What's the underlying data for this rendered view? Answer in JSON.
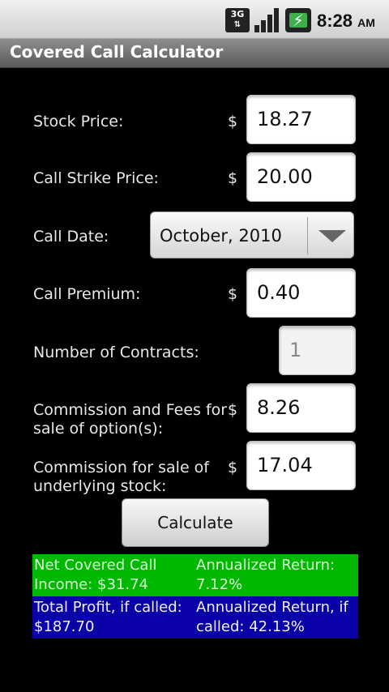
{
  "status_bar": {
    "network": "3G",
    "network_arrows": "⇅",
    "battery_bolt": "⚡",
    "time": "8:28",
    "ampm": "AM"
  },
  "app": {
    "title": "Covered Call Calculator"
  },
  "form": {
    "currency_symbol": "$",
    "stock_price": {
      "label": "Stock Price:",
      "value": "18.27"
    },
    "call_strike": {
      "label": "Call Strike Price:",
      "value": "20.00"
    },
    "call_date": {
      "label": "Call Date:",
      "value": "October, 2010"
    },
    "call_premium": {
      "label": "Call Premium:",
      "value": "0.40"
    },
    "contracts": {
      "label": "Number of Contracts:",
      "value": "1"
    },
    "commission_option": {
      "label_line1": "Commission and Fees for",
      "label_line2": "sale of option(s):",
      "value": "8.26"
    },
    "commission_stock": {
      "label_line1": "Commission for sale of",
      "label_line2": "underlying stock:",
      "value": "17.04"
    },
    "calculate_label": "Calculate"
  },
  "results": {
    "net_income_line1": "Net Covered Call",
    "net_income_line2": "Income: $31.74",
    "annualized_line1": "Annualized Return:",
    "annualized_line2": "7.12%",
    "total_profit_line1": "Total Profit, if called:",
    "total_profit_line2": "$187.70",
    "annualized_called_line1": "Annualized Return, if",
    "annualized_called_line2": "called: 42.13%",
    "colors": {
      "net_row": "#00b800",
      "profit_row": "#0a00a8"
    }
  }
}
